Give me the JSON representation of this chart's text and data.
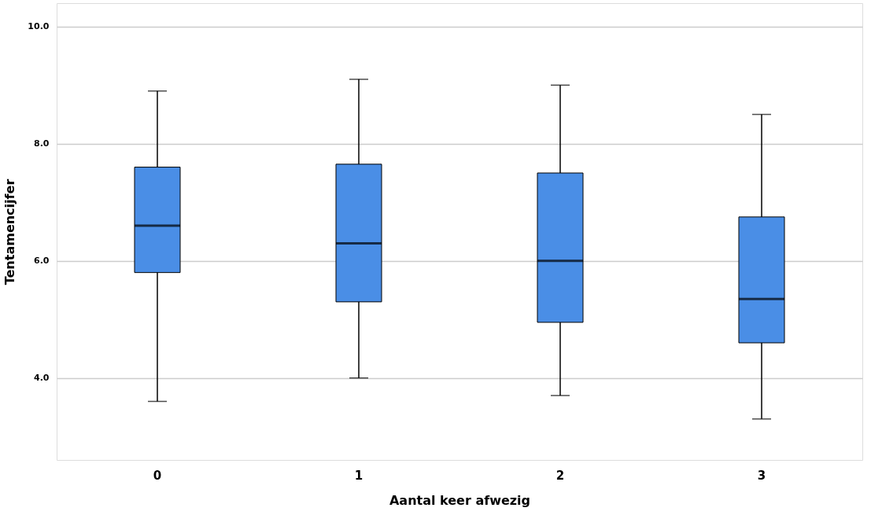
{
  "chart_data": {
    "type": "box",
    "xlabel": "Aantal keer afwezig",
    "ylabel": "Tentamencijfer",
    "categories": [
      "0",
      "1",
      "2",
      "3"
    ],
    "series": [
      {
        "color": "#4a8ee6",
        "boxes": [
          {
            "low": 3.6,
            "q1": 5.8,
            "median": 6.6,
            "q3": 7.6,
            "high": 8.9
          },
          {
            "low": 4.0,
            "q1": 5.3,
            "median": 6.3,
            "q3": 7.65,
            "high": 9.1
          },
          {
            "low": 3.7,
            "q1": 4.95,
            "median": 6.0,
            "q3": 7.5,
            "high": 9.0
          },
          {
            "low": 3.3,
            "q1": 4.6,
            "median": 5.35,
            "q3": 6.75,
            "high": 8.5
          }
        ]
      }
    ],
    "ylim": [
      2.6,
      10.4
    ],
    "yticks": [
      {
        "value": 4,
        "label": "4.0"
      },
      {
        "value": 6,
        "label": "6.0"
      },
      {
        "value": 8,
        "label": "8.0"
      },
      {
        "value": 10,
        "label": "10.0"
      }
    ],
    "grid": "y"
  }
}
